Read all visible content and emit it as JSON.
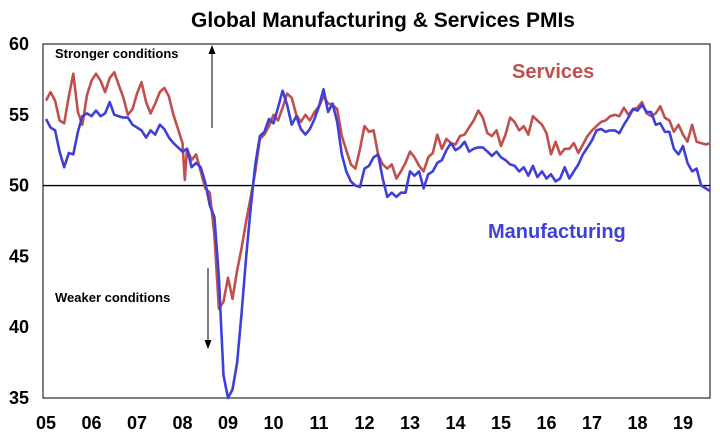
{
  "chart_data": {
    "type": "line",
    "title": "Global Manufacturing & Services PMIs",
    "xlabel": "",
    "ylabel": "",
    "x_ticks": [
      "05",
      "06",
      "07",
      "08",
      "09",
      "10",
      "11",
      "12",
      "13",
      "14",
      "15",
      "16",
      "17",
      "18",
      "19"
    ],
    "y_ticks": [
      "35",
      "40",
      "45",
      "50",
      "55",
      "60"
    ],
    "xlim": [
      2005.0,
      2019.7
    ],
    "ylim": [
      35,
      60
    ],
    "reference_line": 50,
    "grid": false,
    "annotations": {
      "stronger": "Stronger conditions",
      "weaker": "Weaker conditions"
    },
    "series": [
      {
        "name": "Services",
        "color": "#c0504d",
        "points": [
          [
            2005.0,
            56.0
          ],
          [
            2005.1,
            56.6
          ],
          [
            2005.2,
            56.0
          ],
          [
            2005.3,
            54.6
          ],
          [
            2005.4,
            54.4
          ],
          [
            2005.5,
            56.3
          ],
          [
            2005.6,
            57.9
          ],
          [
            2005.7,
            55.2
          ],
          [
            2005.8,
            54.3
          ],
          [
            2005.9,
            56.4
          ],
          [
            2006.0,
            57.4
          ],
          [
            2006.1,
            57.9
          ],
          [
            2006.2,
            57.4
          ],
          [
            2006.3,
            56.6
          ],
          [
            2006.4,
            57.6
          ],
          [
            2006.5,
            58.0
          ],
          [
            2006.6,
            57.1
          ],
          [
            2006.7,
            56.2
          ],
          [
            2006.8,
            55.0
          ],
          [
            2006.9,
            55.4
          ],
          [
            2007.0,
            56.5
          ],
          [
            2007.1,
            57.3
          ],
          [
            2007.2,
            55.9
          ],
          [
            2007.3,
            55.1
          ],
          [
            2007.4,
            55.8
          ],
          [
            2007.5,
            56.6
          ],
          [
            2007.6,
            56.9
          ],
          [
            2007.7,
            56.3
          ],
          [
            2007.8,
            55.0
          ],
          [
            2007.9,
            54.0
          ],
          [
            2008.0,
            53.0
          ],
          [
            2008.05,
            50.4
          ],
          [
            2008.1,
            52.6
          ],
          [
            2008.2,
            51.8
          ],
          [
            2008.3,
            52.2
          ],
          [
            2008.4,
            51.0
          ],
          [
            2008.5,
            49.8
          ],
          [
            2008.6,
            49.5
          ],
          [
            2008.7,
            46.5
          ],
          [
            2008.8,
            41.3
          ],
          [
            2008.9,
            41.8
          ],
          [
            2009.0,
            43.5
          ],
          [
            2009.1,
            42.0
          ],
          [
            2009.2,
            44.0
          ],
          [
            2009.3,
            45.6
          ],
          [
            2009.4,
            47.5
          ],
          [
            2009.5,
            49.2
          ],
          [
            2009.6,
            51.0
          ],
          [
            2009.7,
            53.3
          ],
          [
            2009.8,
            53.6
          ],
          [
            2009.9,
            54.2
          ],
          [
            2010.0,
            55.0
          ],
          [
            2010.1,
            54.6
          ],
          [
            2010.2,
            55.5
          ],
          [
            2010.3,
            56.5
          ],
          [
            2010.4,
            56.2
          ],
          [
            2010.5,
            55.0
          ],
          [
            2010.6,
            54.5
          ],
          [
            2010.7,
            55.0
          ],
          [
            2010.8,
            54.6
          ],
          [
            2010.9,
            55.2
          ],
          [
            2011.0,
            55.6
          ],
          [
            2011.1,
            56.3
          ],
          [
            2011.2,
            55.8
          ],
          [
            2011.3,
            55.7
          ],
          [
            2011.4,
            55.4
          ],
          [
            2011.5,
            53.5
          ],
          [
            2011.6,
            52.5
          ],
          [
            2011.7,
            51.5
          ],
          [
            2011.8,
            51.2
          ],
          [
            2011.9,
            52.6
          ],
          [
            2012.0,
            54.2
          ],
          [
            2012.1,
            53.8
          ],
          [
            2012.2,
            53.9
          ],
          [
            2012.3,
            52.2
          ],
          [
            2012.4,
            51.5
          ],
          [
            2012.5,
            51.2
          ],
          [
            2012.6,
            51.5
          ],
          [
            2012.7,
            50.5
          ],
          [
            2012.8,
            51.0
          ],
          [
            2012.9,
            51.6
          ],
          [
            2013.0,
            52.4
          ],
          [
            2013.1,
            52.0
          ],
          [
            2013.2,
            51.4
          ],
          [
            2013.3,
            51.0
          ],
          [
            2013.4,
            52.0
          ],
          [
            2013.5,
            52.3
          ],
          [
            2013.6,
            53.6
          ],
          [
            2013.7,
            52.6
          ],
          [
            2013.8,
            53.3
          ],
          [
            2013.9,
            53.0
          ],
          [
            2014.0,
            52.9
          ],
          [
            2014.1,
            53.5
          ],
          [
            2014.2,
            53.6
          ],
          [
            2014.3,
            54.1
          ],
          [
            2014.4,
            54.6
          ],
          [
            2014.5,
            55.3
          ],
          [
            2014.6,
            54.8
          ],
          [
            2014.7,
            53.7
          ],
          [
            2014.8,
            53.5
          ],
          [
            2014.9,
            53.9
          ],
          [
            2015.0,
            52.8
          ],
          [
            2015.1,
            53.6
          ],
          [
            2015.2,
            54.8
          ],
          [
            2015.3,
            54.5
          ],
          [
            2015.4,
            53.9
          ],
          [
            2015.5,
            54.2
          ],
          [
            2015.6,
            53.6
          ],
          [
            2015.7,
            54.9
          ],
          [
            2015.8,
            54.6
          ],
          [
            2015.9,
            54.3
          ],
          [
            2016.0,
            53.7
          ],
          [
            2016.1,
            52.2
          ],
          [
            2016.2,
            53.1
          ],
          [
            2016.3,
            52.2
          ],
          [
            2016.4,
            52.6
          ],
          [
            2016.5,
            52.6
          ],
          [
            2016.6,
            53.0
          ],
          [
            2016.7,
            52.3
          ],
          [
            2016.8,
            52.9
          ],
          [
            2016.9,
            53.5
          ],
          [
            2017.0,
            53.9
          ],
          [
            2017.1,
            54.2
          ],
          [
            2017.2,
            54.5
          ],
          [
            2017.3,
            54.6
          ],
          [
            2017.4,
            54.9
          ],
          [
            2017.5,
            55.0
          ],
          [
            2017.6,
            54.9
          ],
          [
            2017.7,
            55.5
          ],
          [
            2017.8,
            55.0
          ],
          [
            2017.9,
            55.4
          ],
          [
            2018.0,
            55.5
          ],
          [
            2018.1,
            55.9
          ],
          [
            2018.2,
            55.1
          ],
          [
            2018.3,
            54.9
          ],
          [
            2018.4,
            55.1
          ],
          [
            2018.5,
            55.6
          ],
          [
            2018.6,
            54.8
          ],
          [
            2018.7,
            54.6
          ],
          [
            2018.8,
            53.8
          ],
          [
            2018.9,
            54.3
          ],
          [
            2019.0,
            53.6
          ],
          [
            2019.1,
            53.1
          ],
          [
            2019.2,
            54.3
          ],
          [
            2019.3,
            53.1
          ],
          [
            2019.4,
            53.0
          ],
          [
            2019.5,
            52.9
          ],
          [
            2019.6,
            53.0
          ]
        ]
      },
      {
        "name": "Manufacturing",
        "color": "#3f3fd9",
        "points": [
          [
            2005.0,
            54.7
          ],
          [
            2005.1,
            54.1
          ],
          [
            2005.2,
            53.9
          ],
          [
            2005.3,
            52.4
          ],
          [
            2005.4,
            51.3
          ],
          [
            2005.5,
            52.3
          ],
          [
            2005.6,
            52.2
          ],
          [
            2005.7,
            53.8
          ],
          [
            2005.8,
            54.9
          ],
          [
            2005.9,
            55.1
          ],
          [
            2006.0,
            54.9
          ],
          [
            2006.1,
            55.3
          ],
          [
            2006.2,
            54.9
          ],
          [
            2006.3,
            55.1
          ],
          [
            2006.4,
            55.9
          ],
          [
            2006.5,
            55.0
          ],
          [
            2006.6,
            54.9
          ],
          [
            2006.7,
            54.8
          ],
          [
            2006.8,
            54.8
          ],
          [
            2006.9,
            54.3
          ],
          [
            2007.0,
            54.1
          ],
          [
            2007.1,
            53.9
          ],
          [
            2007.2,
            53.4
          ],
          [
            2007.3,
            53.9
          ],
          [
            2007.4,
            53.6
          ],
          [
            2007.5,
            54.3
          ],
          [
            2007.6,
            54.0
          ],
          [
            2007.7,
            53.4
          ],
          [
            2007.8,
            53.0
          ],
          [
            2007.9,
            52.7
          ],
          [
            2008.0,
            52.4
          ],
          [
            2008.1,
            52.6
          ],
          [
            2008.2,
            51.3
          ],
          [
            2008.3,
            51.6
          ],
          [
            2008.4,
            51.3
          ],
          [
            2008.5,
            50.2
          ],
          [
            2008.6,
            48.6
          ],
          [
            2008.7,
            47.8
          ],
          [
            2008.8,
            43.5
          ],
          [
            2008.85,
            40.0
          ],
          [
            2008.9,
            36.6
          ],
          [
            2009.0,
            35.0
          ],
          [
            2009.1,
            35.6
          ],
          [
            2009.2,
            37.5
          ],
          [
            2009.3,
            41.0
          ],
          [
            2009.4,
            45.0
          ],
          [
            2009.5,
            48.5
          ],
          [
            2009.6,
            51.5
          ],
          [
            2009.7,
            53.5
          ],
          [
            2009.8,
            53.8
          ],
          [
            2009.9,
            54.7
          ],
          [
            2010.0,
            54.4
          ],
          [
            2010.1,
            55.5
          ],
          [
            2010.2,
            56.7
          ],
          [
            2010.3,
            55.7
          ],
          [
            2010.4,
            54.3
          ],
          [
            2010.5,
            54.9
          ],
          [
            2010.6,
            54.0
          ],
          [
            2010.7,
            53.6
          ],
          [
            2010.8,
            54.0
          ],
          [
            2010.9,
            54.7
          ],
          [
            2011.0,
            55.6
          ],
          [
            2011.1,
            56.8
          ],
          [
            2011.2,
            55.2
          ],
          [
            2011.3,
            55.8
          ],
          [
            2011.4,
            54.5
          ],
          [
            2011.5,
            52.2
          ],
          [
            2011.6,
            51.0
          ],
          [
            2011.7,
            50.3
          ],
          [
            2011.8,
            50.0
          ],
          [
            2011.9,
            49.9
          ],
          [
            2012.0,
            51.2
          ],
          [
            2012.1,
            51.4
          ],
          [
            2012.2,
            52.0
          ],
          [
            2012.3,
            52.2
          ],
          [
            2012.4,
            50.5
          ],
          [
            2012.5,
            49.2
          ],
          [
            2012.6,
            49.5
          ],
          [
            2012.7,
            49.2
          ],
          [
            2012.8,
            49.5
          ],
          [
            2012.9,
            49.5
          ],
          [
            2013.0,
            51.0
          ],
          [
            2013.1,
            50.7
          ],
          [
            2013.2,
            51.0
          ],
          [
            2013.3,
            49.8
          ],
          [
            2013.4,
            50.8
          ],
          [
            2013.5,
            51.0
          ],
          [
            2013.6,
            51.6
          ],
          [
            2013.7,
            51.8
          ],
          [
            2013.8,
            52.5
          ],
          [
            2013.9,
            53.0
          ],
          [
            2014.0,
            52.5
          ],
          [
            2014.1,
            52.7
          ],
          [
            2014.2,
            53.1
          ],
          [
            2014.3,
            52.4
          ],
          [
            2014.4,
            52.6
          ],
          [
            2014.5,
            52.7
          ],
          [
            2014.6,
            52.7
          ],
          [
            2014.7,
            52.4
          ],
          [
            2014.8,
            52.1
          ],
          [
            2014.9,
            52.4
          ],
          [
            2015.0,
            52.0
          ],
          [
            2015.1,
            51.8
          ],
          [
            2015.2,
            51.5
          ],
          [
            2015.3,
            51.4
          ],
          [
            2015.4,
            51.0
          ],
          [
            2015.5,
            51.3
          ],
          [
            2015.6,
            50.7
          ],
          [
            2015.7,
            51.4
          ],
          [
            2015.8,
            50.6
          ],
          [
            2015.9,
            51.0
          ],
          [
            2016.0,
            50.5
          ],
          [
            2016.1,
            50.8
          ],
          [
            2016.2,
            50.3
          ],
          [
            2016.3,
            50.5
          ],
          [
            2016.4,
            51.3
          ],
          [
            2016.5,
            50.5
          ],
          [
            2016.6,
            51.0
          ],
          [
            2016.7,
            51.5
          ],
          [
            2016.8,
            52.2
          ],
          [
            2016.9,
            52.7
          ],
          [
            2017.0,
            53.2
          ],
          [
            2017.1,
            53.9
          ],
          [
            2017.2,
            54.0
          ],
          [
            2017.3,
            53.8
          ],
          [
            2017.4,
            53.9
          ],
          [
            2017.5,
            53.9
          ],
          [
            2017.6,
            53.7
          ],
          [
            2017.7,
            54.3
          ],
          [
            2017.8,
            54.8
          ],
          [
            2017.9,
            55.4
          ],
          [
            2018.0,
            55.3
          ],
          [
            2018.1,
            55.7
          ],
          [
            2018.2,
            55.2
          ],
          [
            2018.3,
            55.2
          ],
          [
            2018.4,
            54.3
          ],
          [
            2018.5,
            54.4
          ],
          [
            2018.6,
            53.8
          ],
          [
            2018.7,
            53.8
          ],
          [
            2018.8,
            52.6
          ],
          [
            2018.9,
            52.2
          ],
          [
            2019.0,
            52.8
          ],
          [
            2019.1,
            51.6
          ],
          [
            2019.2,
            51.0
          ],
          [
            2019.3,
            51.2
          ],
          [
            2019.4,
            50.0
          ],
          [
            2019.5,
            49.8
          ],
          [
            2019.6,
            49.6
          ]
        ]
      }
    ]
  }
}
